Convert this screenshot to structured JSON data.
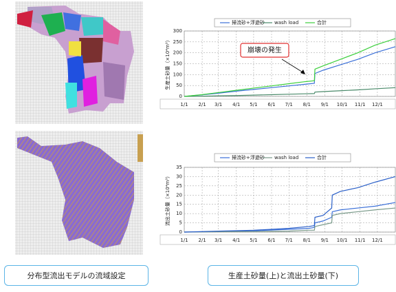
{
  "chart_data": [
    {
      "type": "line",
      "ylabel": "生産土砂量（×10⁴m³）",
      "xlim": [
        0,
        365
      ],
      "xticks": [
        {
          "value": 0,
          "label": "1/1"
        },
        {
          "value": 31,
          "label": "2/1"
        },
        {
          "value": 59,
          "label": "3/1"
        },
        {
          "value": 90,
          "label": "4/1"
        },
        {
          "value": 120,
          "label": "5/1"
        },
        {
          "value": 151,
          "label": "6/1"
        },
        {
          "value": 181,
          "label": "7/1"
        },
        {
          "value": 212,
          "label": "8/1"
        },
        {
          "value": 243,
          "label": "9/1"
        },
        {
          "value": 273,
          "label": "10/1"
        },
        {
          "value": 304,
          "label": "11/1"
        },
        {
          "value": 334,
          "label": "12/1"
        }
      ],
      "ylim": [
        0,
        300
      ],
      "yticks": [
        0,
        50,
        100,
        150,
        200,
        250,
        300
      ],
      "grid": true,
      "x": [
        0,
        30,
        60,
        90,
        120,
        150,
        180,
        210,
        225,
        226,
        240,
        270,
        300,
        330,
        365
      ],
      "series": [
        {
          "name": "掃流砂+浮遊砂",
          "color": "#3a6fd8",
          "values": [
            0,
            7,
            15,
            24,
            32,
            40,
            48,
            56,
            60,
            105,
            120,
            145,
            170,
            200,
            228
          ]
        },
        {
          "name": "wash load",
          "color": "#4a8a6a",
          "values": [
            0,
            1,
            3,
            4,
            6,
            8,
            10,
            12,
            13,
            20,
            22,
            26,
            30,
            35,
            40
          ]
        },
        {
          "name": "合計",
          "color": "#3ccf3c",
          "values": [
            0,
            8,
            18,
            28,
            38,
            48,
            58,
            68,
            72,
            125,
            140,
            170,
            200,
            235,
            265
          ]
        }
      ],
      "annotation": "崩壊の発生"
    },
    {
      "type": "line",
      "ylabel": "流出土砂量（×10⁴m³）",
      "xlim": [
        0,
        365
      ],
      "xticks": [
        {
          "value": 0,
          "label": "1/1"
        },
        {
          "value": 31,
          "label": "2/1"
        },
        {
          "value": 59,
          "label": "3/1"
        },
        {
          "value": 90,
          "label": "4/1"
        },
        {
          "value": 120,
          "label": "5/1"
        },
        {
          "value": 151,
          "label": "6/1"
        },
        {
          "value": 181,
          "label": "7/1"
        },
        {
          "value": 212,
          "label": "8/1"
        },
        {
          "value": 243,
          "label": "9/1"
        },
        {
          "value": 273,
          "label": "10/1"
        },
        {
          "value": 304,
          "label": "11/1"
        },
        {
          "value": 334,
          "label": "12/1"
        }
      ],
      "ylim": [
        0,
        35
      ],
      "yticks": [
        0,
        5,
        10,
        15,
        20,
        25,
        30,
        35
      ],
      "grid": true,
      "x": [
        0,
        60,
        120,
        180,
        215,
        225,
        226,
        240,
        255,
        256,
        270,
        300,
        330,
        365
      ],
      "series": [
        {
          "name": "掃流砂+浮遊砂",
          "color": "#3a6fd8",
          "values": [
            0,
            0.3,
            0.7,
            1.5,
            2,
            2.5,
            5,
            6,
            8,
            11,
            12,
            13,
            14,
            16
          ]
        },
        {
          "name": "wash load",
          "color": "#7a9a8a",
          "values": [
            0,
            0.2,
            0.3,
            0.5,
            1,
            1,
            3,
            4,
            5,
            9,
            10,
            11,
            12,
            13
          ]
        },
        {
          "name": "合計",
          "color": "#2a5fc8",
          "values": [
            0,
            0.5,
            1,
            2,
            3,
            3.5,
            8,
            9,
            13,
            20,
            22,
            24,
            27,
            30
          ]
        }
      ]
    }
  ],
  "captions": [
    "分布型流出モデルの流域設定",
    "生産土砂量(上)と流出土砂量(下)"
  ]
}
